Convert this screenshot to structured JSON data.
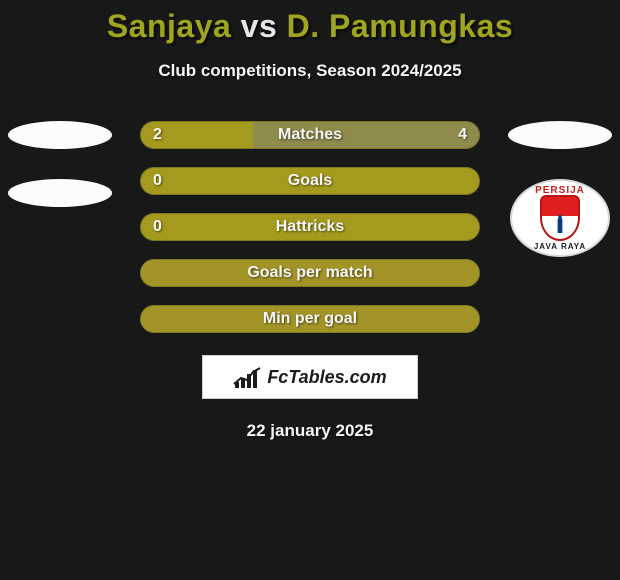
{
  "title": {
    "left_name": "Sanjaya",
    "vs": "vs",
    "right_name": "D. Pamungkas",
    "left_color": "#9fa51e",
    "right_color": "#9fa51e",
    "vs_color": "#e6e6e6"
  },
  "subtitle": "Club competitions, Season 2024/2025",
  "colors": {
    "left_fill": "#a49a1e",
    "right_fill": "#8f8b4c",
    "neutral_bar": "#a39428",
    "bar_border": "#7f7a22"
  },
  "bars": [
    {
      "label": "Matches",
      "left": "2",
      "right": "4",
      "left_pct": 33,
      "show_values": true
    },
    {
      "label": "Goals",
      "left": "0",
      "right": "",
      "left_pct": 100,
      "show_values": true,
      "show_right_value": false
    },
    {
      "label": "Hattricks",
      "left": "0",
      "right": "",
      "left_pct": 100,
      "show_values": true,
      "show_right_value": false
    },
    {
      "label": "Goals per match",
      "left": "",
      "right": "",
      "left_pct": 0,
      "show_values": false
    },
    {
      "label": "Min per goal",
      "left": "",
      "right": "",
      "left_pct": 0,
      "show_values": false
    }
  ],
  "right_club": {
    "top_text": "PERSIJA",
    "bottom_text": "JAVA RAYA"
  },
  "brand": "FcTables.com",
  "date": "22 january 2025"
}
